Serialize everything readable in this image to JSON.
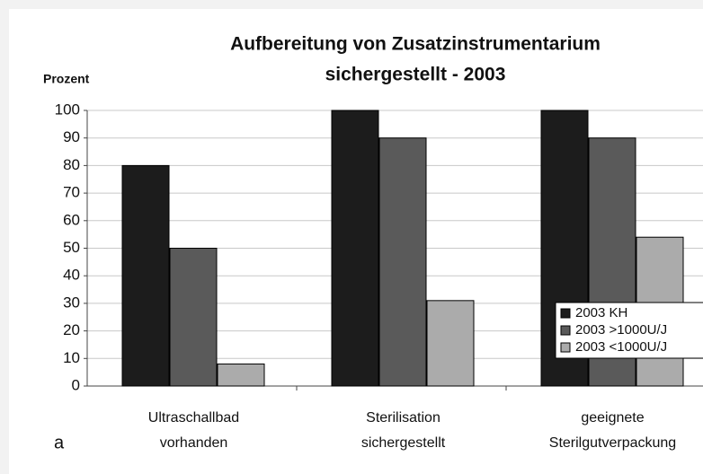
{
  "chart_data": {
    "type": "bar",
    "title": [
      "Aufbereitung von Zusatzinstrumentarium",
      "sichergestellt - 2003"
    ],
    "y_label": "Prozent",
    "panel_label": "a",
    "categories": [
      "Ultraschallbad vorhanden",
      "Sterilisation sichergestellt",
      "geeignete Sterilgutverpackung"
    ],
    "series": [
      {
        "name": "2003 KH",
        "color": "#1c1c1c",
        "values": [
          80,
          100,
          100
        ]
      },
      {
        "name": "2003 >1000U/J",
        "color": "#5a5a5a",
        "values": [
          50,
          90,
          90
        ]
      },
      {
        "name": "2003 <1000U/J",
        "color": "#ababab",
        "values": [
          8,
          31,
          54
        ]
      }
    ],
    "ylim": [
      0,
      100
    ],
    "yticks": [
      0,
      10,
      20,
      30,
      40,
      50,
      60,
      70,
      80,
      90,
      100
    ],
    "grid": true,
    "legend": "lower right"
  }
}
